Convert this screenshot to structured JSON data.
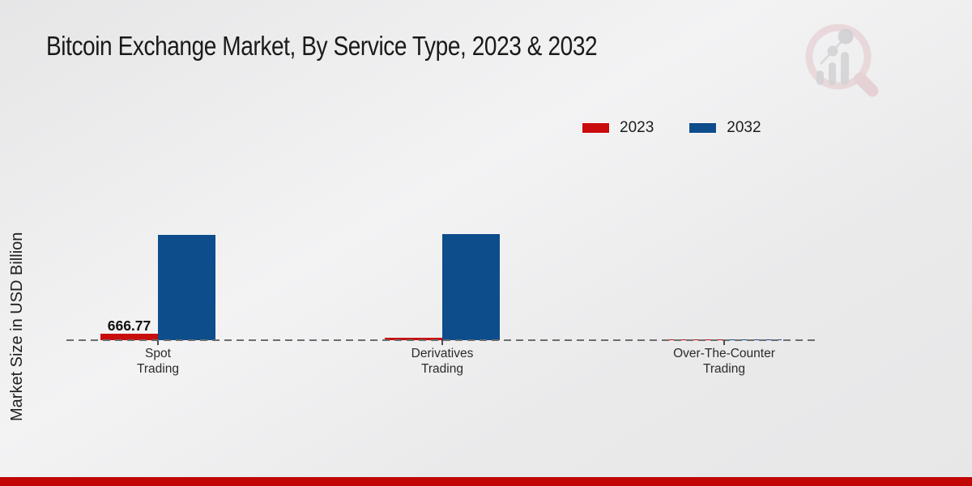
{
  "title": "Bitcoin Exchange Market, By Service Type, 2023 & 2032",
  "y_axis_label": "Market Size in USD Billion",
  "legend": {
    "items": [
      {
        "label": "2023",
        "color": "#c90d0d"
      },
      {
        "label": "2032",
        "color": "#0d4d8c"
      }
    ]
  },
  "chart_data": {
    "type": "bar",
    "categories": [
      {
        "name": "Spot Trading",
        "lines": [
          "Spot",
          "Trading"
        ]
      },
      {
        "name": "Derivatives Trading",
        "lines": [
          "Derivatives",
          "Trading"
        ]
      },
      {
        "name": "Over-The-Counter Trading",
        "lines": [
          "Over-The-Counter",
          "Trading"
        ]
      }
    ],
    "series": [
      {
        "name": "2023",
        "color": "#c90d0d",
        "values": [
          666.77,
          250,
          60
        ]
      },
      {
        "name": "2032",
        "color": "#0d4d8c",
        "values": [
          10830,
          10920,
          125
        ]
      }
    ],
    "value_labels": [
      {
        "series": "2023",
        "category": "Spot Trading",
        "text": "666.77"
      }
    ],
    "xlabel": "",
    "ylabel": "Market Size in USD Billion",
    "ylim": [
      0,
      12000
    ],
    "grid": false,
    "y_axis_ticks_visible": false,
    "legend_position": "top-right",
    "baseline_style": "dashed",
    "note": "Only the 2023 Spot Trading bar is labeled (666.77); other values are estimated from bar heights."
  },
  "footer": {
    "band_color": "#c20606"
  },
  "watermark": {
    "name": "market-research-magnifier-logo"
  }
}
